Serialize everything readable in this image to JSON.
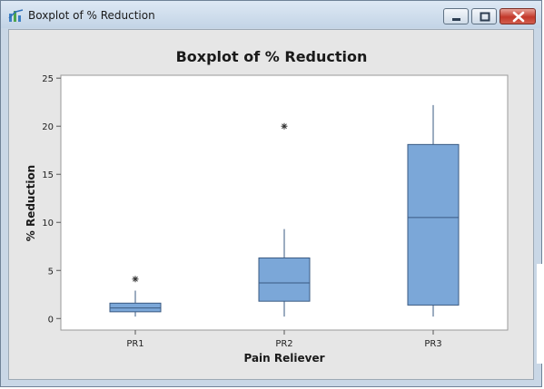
{
  "window": {
    "title": "Boxplot of % Reduction",
    "icon": "minitab-graph-icon",
    "controls": [
      "minimize-icon",
      "maximize-icon",
      "close-icon"
    ]
  },
  "colors": {
    "box_fill": "#7ba7d8",
    "box_stroke": "#3a5a82",
    "plot_background": "#ffffff",
    "panel_background": "#e6e6e6"
  },
  "chart_data": {
    "type": "boxplot",
    "title": "Boxplot of % Reduction",
    "xlabel": "Pain Reliever",
    "ylabel": "% Reduction",
    "ylim": [
      -1.2,
      25.3
    ],
    "yticks": [
      0,
      5,
      10,
      15,
      20,
      25
    ],
    "grid": false,
    "legend": "none",
    "categories": [
      "PR1",
      "PR2",
      "PR3"
    ],
    "boxes": [
      {
        "category": "PR1",
        "whisker_low": 0.2,
        "q1": 0.7,
        "median": 1.1,
        "q3": 1.6,
        "whisker_high": 2.9,
        "outliers": [
          4.1
        ]
      },
      {
        "category": "PR2",
        "whisker_low": 0.2,
        "q1": 1.8,
        "median": 3.7,
        "q3": 6.3,
        "whisker_high": 9.3,
        "outliers": [
          20.0
        ]
      },
      {
        "category": "PR3",
        "whisker_low": 0.2,
        "q1": 1.4,
        "median": 10.5,
        "q3": 18.1,
        "whisker_high": 22.2,
        "outliers": []
      }
    ]
  }
}
